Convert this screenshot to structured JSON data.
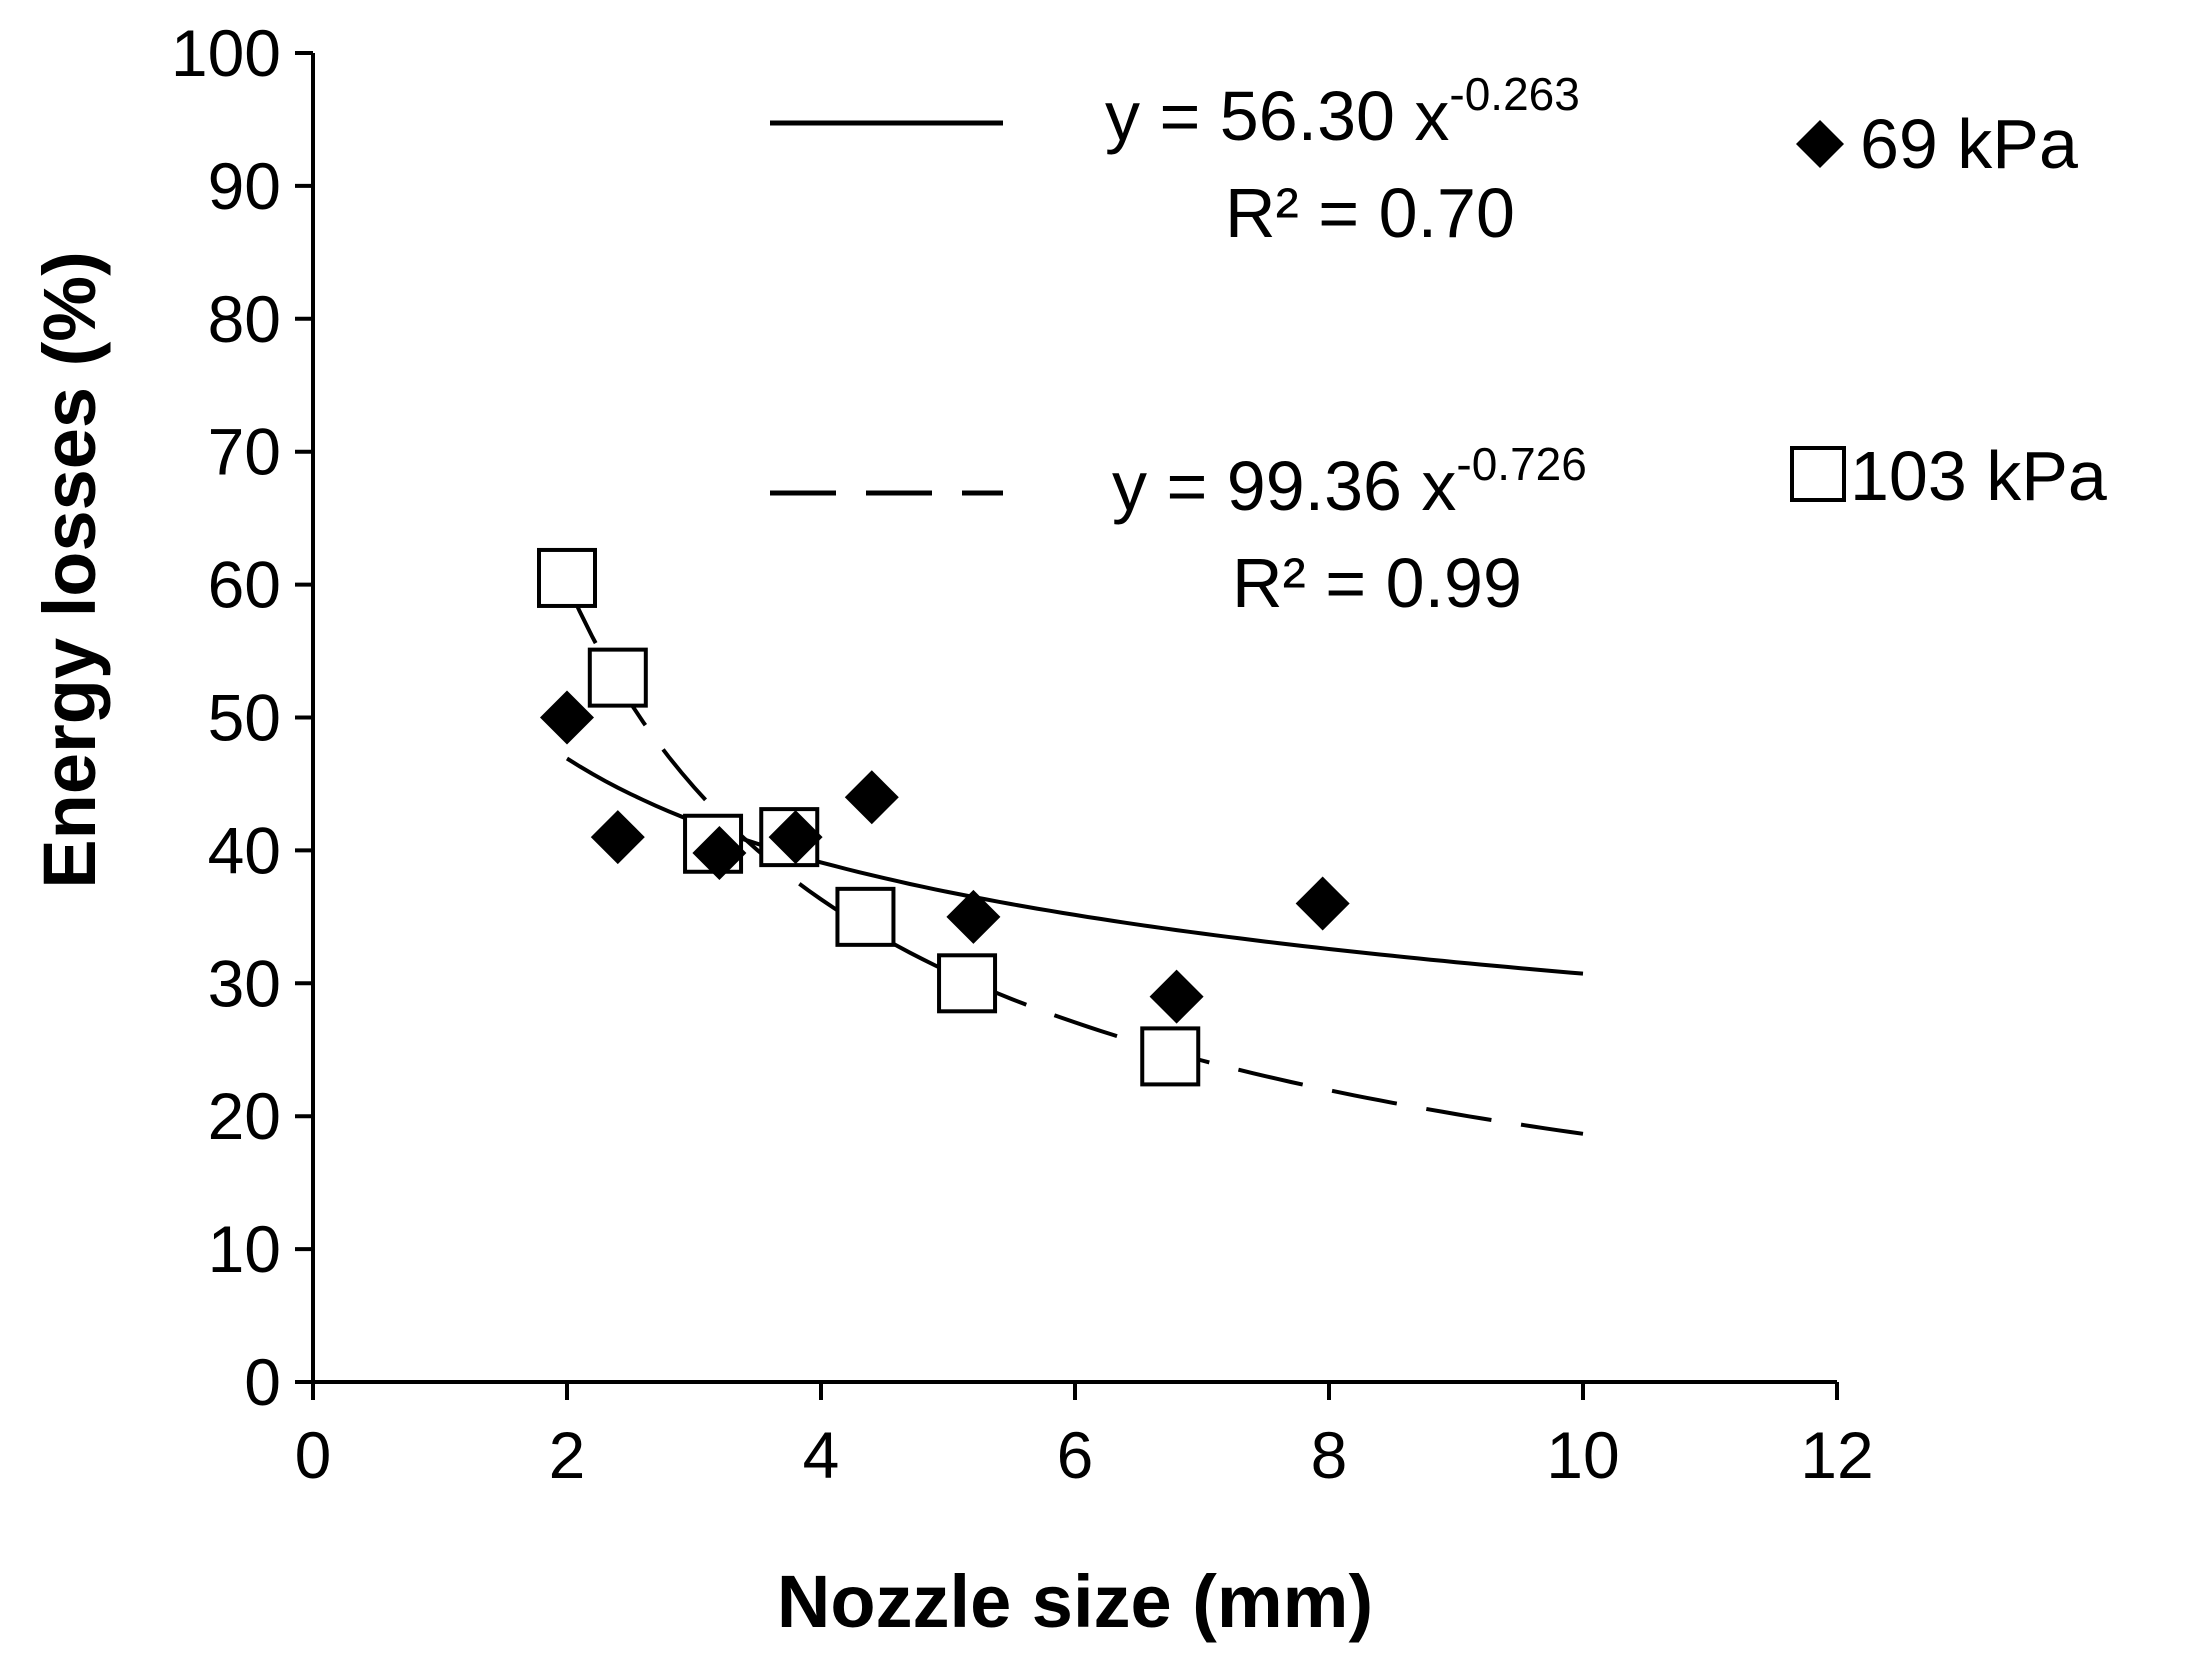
{
  "chart_data": {
    "type": "scatter",
    "title": "",
    "xlabel": "Nozzle size (mm)",
    "ylabel": "Energy  losses (%)",
    "xlim": [
      0,
      12
    ],
    "ylim": [
      0,
      100
    ],
    "x_ticks": [
      0,
      2,
      4,
      6,
      8,
      10,
      12
    ],
    "y_ticks": [
      0,
      10,
      20,
      30,
      40,
      50,
      60,
      70,
      80,
      90,
      100
    ],
    "grid": false,
    "legend_position": "right",
    "series": [
      {
        "name": "69 kPa",
        "marker": "diamond-filled",
        "x": [
          2.0,
          2.4,
          3.2,
          3.8,
          4.4,
          5.2,
          6.8,
          7.95
        ],
        "y": [
          50,
          41,
          39.8,
          41,
          44,
          35,
          29,
          36
        ]
      },
      {
        "name": "103 kPa",
        "marker": "square-open",
        "x": [
          2.0,
          2.4,
          3.15,
          3.75,
          4.35,
          5.15,
          6.75
        ],
        "y": [
          60.5,
          53,
          40.5,
          41,
          35,
          30,
          24.5
        ]
      }
    ],
    "trendlines": [
      {
        "series": "69 kPa",
        "style": "solid",
        "coef": 56.3,
        "exponent": -0.263,
        "x_range": [
          2.0,
          10.0
        ],
        "equation_base": "y = 56.30 x",
        "equation_exp": "-0.263",
        "r2_label": "R² = 0.70"
      },
      {
        "series": "103 kPa",
        "style": "dashed",
        "coef": 99.36,
        "exponent": -0.726,
        "x_range": [
          2.0,
          10.0
        ],
        "equation_base": "y = 99.36 x",
        "equation_exp": "-0.726",
        "r2_label": "R² = 0.99"
      }
    ]
  }
}
